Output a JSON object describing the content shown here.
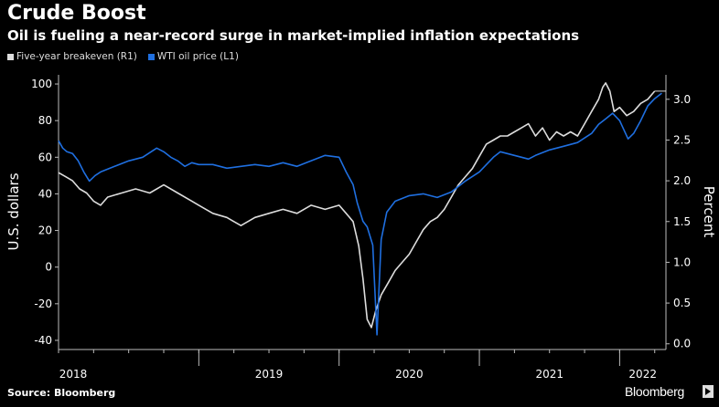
{
  "chart_data": {
    "type": "line",
    "title": "Crude Boost",
    "subtitle": "Oil is fueling a near-record surge in market-implied inflation expectations",
    "source": "Source: Bloomberg",
    "brand": "Bloomberg",
    "left_axis": {
      "label": "U.S. dollars",
      "ticks": [
        "100",
        "80",
        "60",
        "40",
        "20",
        "0",
        "-20",
        "-40"
      ],
      "ylim": [
        -45,
        105
      ]
    },
    "right_axis": {
      "label": "Percent",
      "ticks": [
        "3.0",
        "2.5",
        "2.0",
        "1.5",
        "1.0",
        "0.5",
        "0.0"
      ],
      "ylim": [
        -0.07,
        3.3
      ]
    },
    "x_axis": {
      "ticks": [
        "2018",
        "2019",
        "2020",
        "2021",
        "2022"
      ],
      "xlim": [
        2018.0,
        2022.33
      ]
    },
    "legend_position": "top-left",
    "grid": false,
    "colors": {
      "breakeven": "#dddddd",
      "wti": "#1f6fe0"
    },
    "series": [
      {
        "name": "Five-year breakeven (R1)",
        "axis": "right",
        "points": [
          [
            2018.0,
            2.1
          ],
          [
            2018.05,
            2.05
          ],
          [
            2018.1,
            2.0
          ],
          [
            2018.15,
            1.9
          ],
          [
            2018.2,
            1.85
          ],
          [
            2018.25,
            1.75
          ],
          [
            2018.3,
            1.7
          ],
          [
            2018.35,
            1.8
          ],
          [
            2018.45,
            1.85
          ],
          [
            2018.55,
            1.9
          ],
          [
            2018.65,
            1.85
          ],
          [
            2018.75,
            1.95
          ],
          [
            2018.85,
            1.85
          ],
          [
            2018.95,
            1.75
          ],
          [
            2019.0,
            1.7
          ],
          [
            2019.1,
            1.6
          ],
          [
            2019.2,
            1.55
          ],
          [
            2019.25,
            1.5
          ],
          [
            2019.3,
            1.45
          ],
          [
            2019.4,
            1.55
          ],
          [
            2019.5,
            1.6
          ],
          [
            2019.6,
            1.65
          ],
          [
            2019.7,
            1.6
          ],
          [
            2019.8,
            1.7
          ],
          [
            2019.9,
            1.65
          ],
          [
            2020.0,
            1.7
          ],
          [
            2020.05,
            1.6
          ],
          [
            2020.1,
            1.5
          ],
          [
            2020.14,
            1.2
          ],
          [
            2020.17,
            0.8
          ],
          [
            2020.2,
            0.3
          ],
          [
            2020.23,
            0.2
          ],
          [
            2020.26,
            0.4
          ],
          [
            2020.3,
            0.6
          ],
          [
            2020.35,
            0.75
          ],
          [
            2020.4,
            0.9
          ],
          [
            2020.45,
            1.0
          ],
          [
            2020.5,
            1.1
          ],
          [
            2020.55,
            1.25
          ],
          [
            2020.6,
            1.4
          ],
          [
            2020.65,
            1.5
          ],
          [
            2020.7,
            1.55
          ],
          [
            2020.75,
            1.65
          ],
          [
            2020.8,
            1.8
          ],
          [
            2020.85,
            1.95
          ],
          [
            2020.9,
            2.05
          ],
          [
            2020.95,
            2.15
          ],
          [
            2021.0,
            2.3
          ],
          [
            2021.05,
            2.45
          ],
          [
            2021.1,
            2.5
          ],
          [
            2021.15,
            2.55
          ],
          [
            2021.2,
            2.55
          ],
          [
            2021.25,
            2.6
          ],
          [
            2021.3,
            2.65
          ],
          [
            2021.35,
            2.7
          ],
          [
            2021.4,
            2.55
          ],
          [
            2021.45,
            2.65
          ],
          [
            2021.5,
            2.5
          ],
          [
            2021.55,
            2.6
          ],
          [
            2021.6,
            2.55
          ],
          [
            2021.65,
            2.6
          ],
          [
            2021.7,
            2.55
          ],
          [
            2021.75,
            2.7
          ],
          [
            2021.8,
            2.85
          ],
          [
            2021.85,
            3.0
          ],
          [
            2021.88,
            3.15
          ],
          [
            2021.9,
            3.2
          ],
          [
            2021.93,
            3.1
          ],
          [
            2021.96,
            2.85
          ],
          [
            2022.0,
            2.9
          ],
          [
            2022.05,
            2.8
          ],
          [
            2022.1,
            2.85
          ],
          [
            2022.15,
            2.95
          ],
          [
            2022.2,
            3.0
          ],
          [
            2022.25,
            3.1
          ]
        ]
      },
      {
        "name": "WTI oil price (L1)",
        "axis": "left",
        "points": [
          [
            2018.0,
            69
          ],
          [
            2018.03,
            65
          ],
          [
            2018.06,
            63
          ],
          [
            2018.1,
            62
          ],
          [
            2018.14,
            58
          ],
          [
            2018.18,
            52
          ],
          [
            2018.22,
            47
          ],
          [
            2018.26,
            50
          ],
          [
            2018.3,
            52
          ],
          [
            2018.4,
            55
          ],
          [
            2018.5,
            58
          ],
          [
            2018.6,
            60
          ],
          [
            2018.7,
            65
          ],
          [
            2018.75,
            63
          ],
          [
            2018.8,
            60
          ],
          [
            2018.85,
            58
          ],
          [
            2018.9,
            55
          ],
          [
            2018.95,
            57
          ],
          [
            2019.0,
            56
          ],
          [
            2019.1,
            56
          ],
          [
            2019.2,
            54
          ],
          [
            2019.3,
            55
          ],
          [
            2019.4,
            56
          ],
          [
            2019.5,
            55
          ],
          [
            2019.6,
            57
          ],
          [
            2019.7,
            55
          ],
          [
            2019.8,
            58
          ],
          [
            2019.9,
            61
          ],
          [
            2020.0,
            60
          ],
          [
            2020.05,
            52
          ],
          [
            2020.1,
            45
          ],
          [
            2020.13,
            35
          ],
          [
            2020.17,
            25
          ],
          [
            2020.2,
            22
          ],
          [
            2020.24,
            12
          ],
          [
            2020.27,
            -37
          ],
          [
            2020.3,
            15
          ],
          [
            2020.34,
            30
          ],
          [
            2020.4,
            36
          ],
          [
            2020.5,
            39
          ],
          [
            2020.6,
            40
          ],
          [
            2020.7,
            38
          ],
          [
            2020.8,
            41
          ],
          [
            2020.9,
            47
          ],
          [
            2021.0,
            52
          ],
          [
            2021.1,
            60
          ],
          [
            2021.15,
            63
          ],
          [
            2021.2,
            62
          ],
          [
            2021.3,
            60
          ],
          [
            2021.35,
            59
          ],
          [
            2021.4,
            61
          ],
          [
            2021.5,
            64
          ],
          [
            2021.6,
            66
          ],
          [
            2021.7,
            68
          ],
          [
            2021.8,
            73
          ],
          [
            2021.85,
            78
          ],
          [
            2021.9,
            81
          ],
          [
            2021.95,
            84
          ],
          [
            2022.0,
            80
          ],
          [
            2022.03,
            75
          ],
          [
            2022.06,
            70
          ],
          [
            2022.1,
            73
          ],
          [
            2022.15,
            80
          ],
          [
            2022.2,
            88
          ],
          [
            2022.25,
            92
          ],
          [
            2022.3,
            95
          ]
        ]
      }
    ]
  }
}
